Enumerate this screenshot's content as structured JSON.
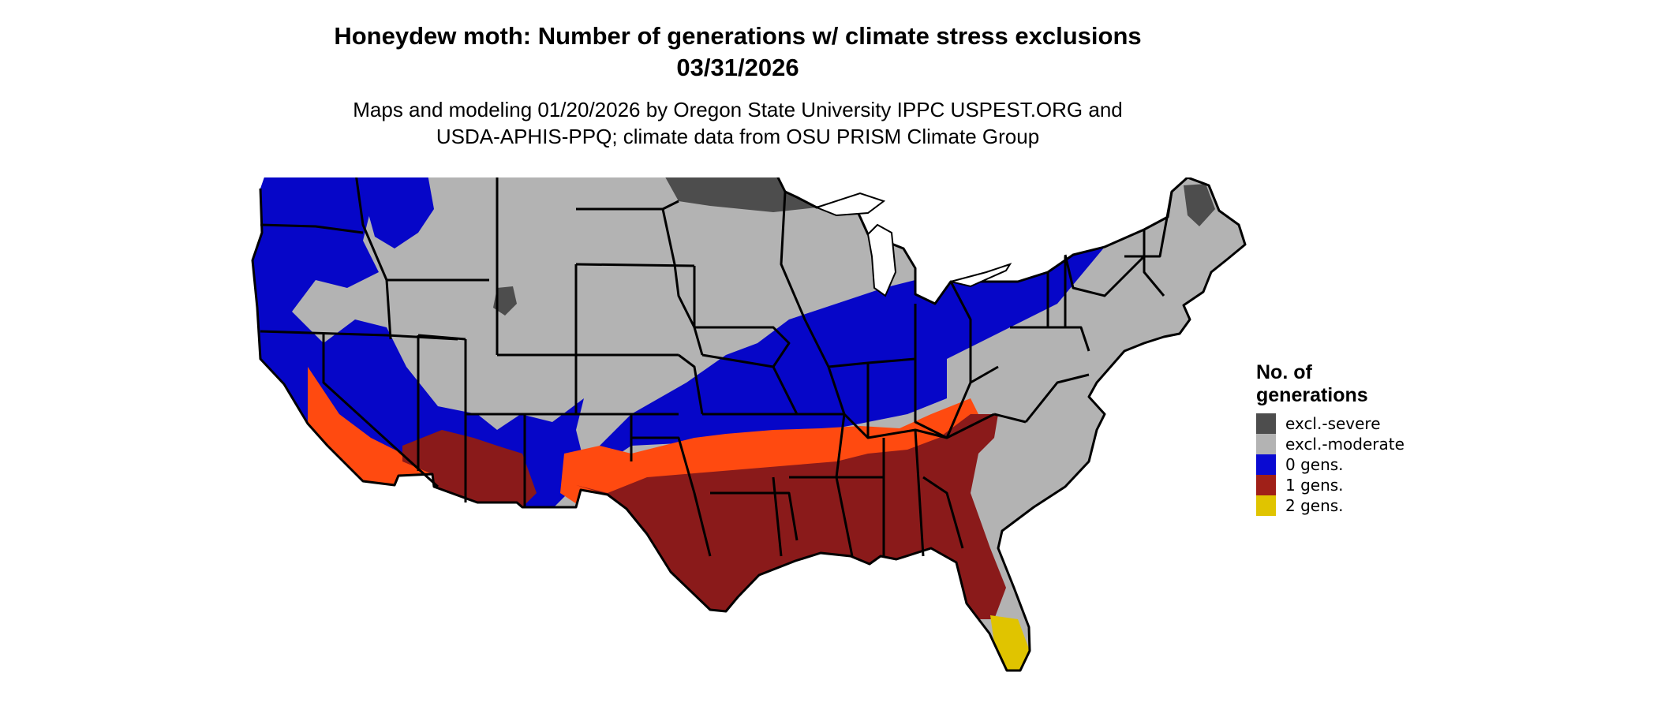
{
  "title": {
    "line1": "Honeydew moth: Number of generations w/ climate stress exclusions",
    "line2": "03/31/2026"
  },
  "subtitle": {
    "line1": "Maps and modeling 01/20/2026 by Oregon State University IPPC USPEST.ORG and",
    "line2": "USDA-APHIS-PPQ; climate data from OSU PRISM Climate Group"
  },
  "legend": {
    "title_line1": "No. of",
    "title_line2": "generations",
    "items": [
      {
        "label": "excl.-severe",
        "color": "#4d4d4d"
      },
      {
        "label": "excl.-moderate",
        "color": "#b3b3b3"
      },
      {
        "label": "0 gens.",
        "color": "#0a0ad2"
      },
      {
        "label": "1 gens.",
        "color": "#a02018"
      },
      {
        "label": "2 gens.",
        "color": "#e0c400"
      }
    ]
  },
  "map_colors": {
    "severe": "#4d4d4d",
    "moderate": "#b3b3b3",
    "zero": "#0606c8",
    "one_light": "#ff4a10",
    "one_dark": "#8a1a1a",
    "two": "#e0c400",
    "border": "#000000"
  }
}
